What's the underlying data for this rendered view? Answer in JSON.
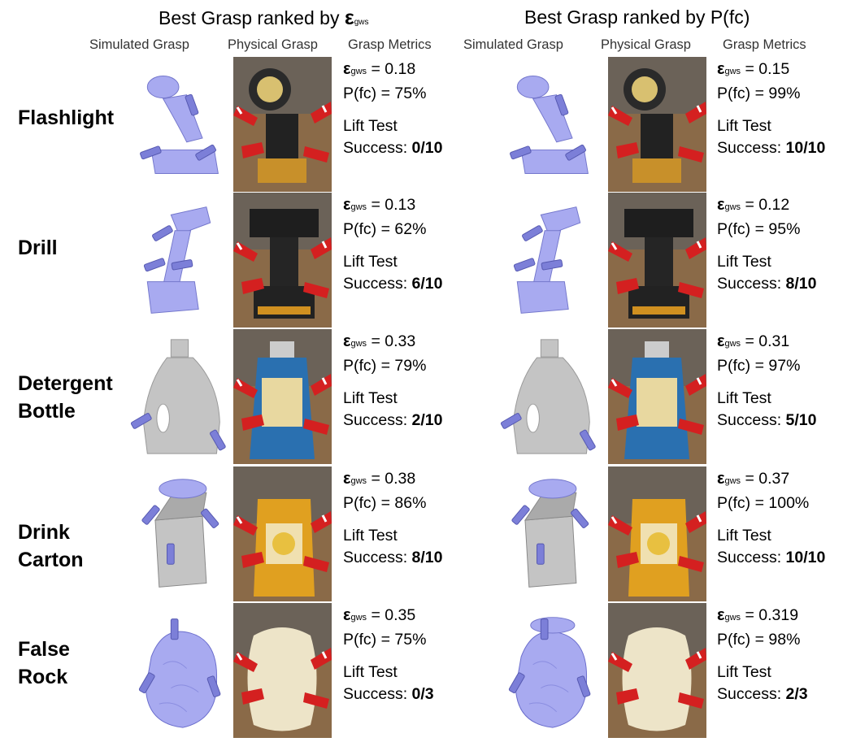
{
  "columns": [
    {
      "title_prefix": "Best Grasp ranked by ",
      "title_symbol": "ε",
      "title_subscript": "gws",
      "title_suffix": "",
      "headers": {
        "simulated": "Simulated Grasp",
        "physical": "Physical Grasp",
        "metrics": "Grasp Metrics"
      }
    },
    {
      "title_prefix": "Best Grasp ranked by P(fc)",
      "title_symbol": "",
      "title_subscript": "",
      "title_suffix": "",
      "headers": {
        "simulated": "Simulated Grasp",
        "physical": "Physical Grasp",
        "metrics": "Grasp Metrics"
      }
    }
  ],
  "metric_labels": {
    "eps_symbol": "ε",
    "eps_subscript": "gws",
    "eps_suffix": " = ",
    "pfc_prefix": "P(fc) = ",
    "lift_test": "Lift Test",
    "success_prefix": "Success: "
  },
  "rows": [
    {
      "label_lines": [
        "Flashlight"
      ],
      "object": "flashlight",
      "left": {
        "eps": "0.18",
        "pfc": "75%",
        "success": "0/10"
      },
      "right": {
        "eps": "0.15",
        "pfc": "99%",
        "success": "10/10"
      }
    },
    {
      "label_lines": [
        "Drill"
      ],
      "object": "drill",
      "left": {
        "eps": "0.13",
        "pfc": "62%",
        "success": "6/10"
      },
      "right": {
        "eps": "0.12",
        "pfc": "95%",
        "success": "8/10"
      }
    },
    {
      "label_lines": [
        "Detergent",
        "Bottle"
      ],
      "object": "bottle",
      "left": {
        "eps": "0.33",
        "pfc": "79%",
        "success": "2/10"
      },
      "right": {
        "eps": "0.31",
        "pfc": "97%",
        "success": "5/10"
      }
    },
    {
      "label_lines": [
        "Drink",
        "Carton"
      ],
      "object": "carton",
      "left": {
        "eps": "0.38",
        "pfc": "86%",
        "success": "8/10"
      },
      "right": {
        "eps": "0.37",
        "pfc": "100%",
        "success": "10/10"
      }
    },
    {
      "label_lines": [
        "False",
        "Rock"
      ],
      "object": "rock",
      "left": {
        "eps": "0.35",
        "pfc": "75%",
        "success": "0/3"
      },
      "right": {
        "eps": "0.319",
        "pfc": "98%",
        "success": "2/3"
      }
    }
  ],
  "colors": {
    "sim_blue": "#a8aaf0",
    "sim_grey": "#c4c4c4",
    "gripper_red": "#d42020",
    "photo_bg": "#8a6a48"
  }
}
